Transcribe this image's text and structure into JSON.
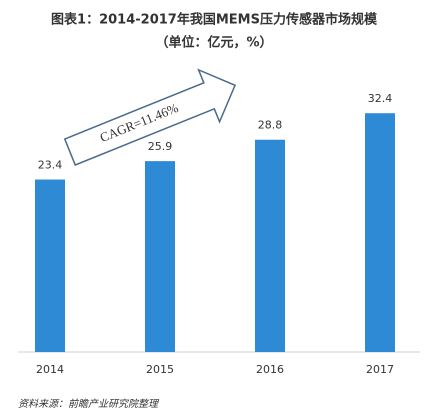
{
  "chart_data": {
    "type": "bar",
    "title": "图表1：2014-2017年我国MEMS压力传感器市场规模",
    "subtitle": "（单位：亿元，%）",
    "categories": [
      "2014",
      "2015",
      "2016",
      "2017"
    ],
    "values": [
      23.4,
      25.9,
      28.8,
      32.4
    ],
    "color": "#2f8ad6",
    "annotation": "CAGR=11.46%",
    "source": "资料来源：前瞻产业研究院整理"
  }
}
